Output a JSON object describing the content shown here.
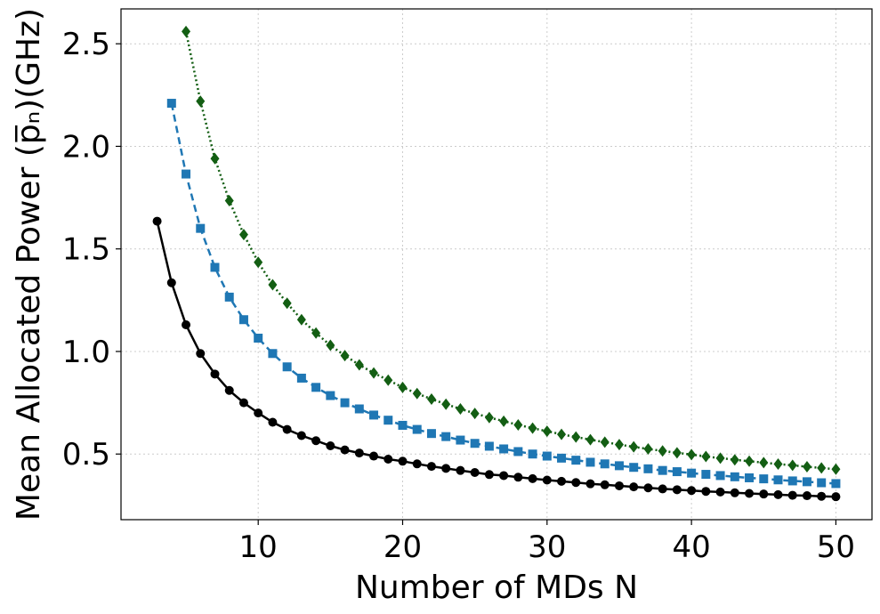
{
  "chart_data": {
    "type": "line",
    "xlabel": "Number of MDs N",
    "ylabel": "Mean Allocated Power (p̅ₙ)(GHz)",
    "xlim": [
      0.5,
      52.5
    ],
    "ylim": [
      0.18,
      2.67
    ],
    "xticks": [
      10,
      20,
      30,
      40,
      50
    ],
    "yticks": [
      0.5,
      1.0,
      1.5,
      2.0,
      2.5
    ],
    "xtick_labels": [
      "10",
      "20",
      "30",
      "40",
      "50"
    ],
    "ytick_labels": [
      "0.5",
      "1.0",
      "1.5",
      "2.0",
      "2.5"
    ],
    "grid": true,
    "legend": "none",
    "series": [
      {
        "color": "#000000",
        "marker": "circle",
        "linestyle": "solid",
        "x": [
          3,
          4,
          5,
          6,
          7,
          8,
          9,
          10,
          11,
          12,
          13,
          14,
          15,
          16,
          17,
          18,
          19,
          20,
          21,
          22,
          23,
          24,
          25,
          26,
          27,
          28,
          29,
          30,
          31,
          32,
          33,
          34,
          35,
          36,
          37,
          38,
          39,
          40,
          41,
          42,
          43,
          44,
          45,
          46,
          47,
          48,
          49,
          50
        ],
        "y": [
          1.635,
          1.335,
          1.13,
          0.99,
          0.89,
          0.81,
          0.75,
          0.7,
          0.655,
          0.62,
          0.59,
          0.565,
          0.54,
          0.52,
          0.505,
          0.49,
          0.475,
          0.465,
          0.452,
          0.44,
          0.43,
          0.42,
          0.41,
          0.4,
          0.395,
          0.387,
          0.38,
          0.373,
          0.367,
          0.361,
          0.355,
          0.35,
          0.345,
          0.34,
          0.335,
          0.33,
          0.326,
          0.322,
          0.318,
          0.315,
          0.311,
          0.308,
          0.305,
          0.302,
          0.299,
          0.297,
          0.294,
          0.292
        ]
      },
      {
        "color": "#1f77b4",
        "marker": "square",
        "linestyle": "dashed",
        "x": [
          4,
          5,
          6,
          7,
          8,
          9,
          10,
          11,
          12,
          13,
          14,
          15,
          16,
          17,
          18,
          19,
          20,
          21,
          22,
          23,
          24,
          25,
          26,
          27,
          28,
          29,
          30,
          31,
          32,
          33,
          34,
          35,
          36,
          37,
          38,
          39,
          40,
          41,
          42,
          43,
          44,
          45,
          46,
          47,
          48,
          49,
          50
        ],
        "y": [
          2.21,
          1.865,
          1.6,
          1.41,
          1.265,
          1.155,
          1.065,
          0.99,
          0.925,
          0.87,
          0.825,
          0.785,
          0.75,
          0.72,
          0.69,
          0.665,
          0.64,
          0.62,
          0.6,
          0.585,
          0.568,
          0.552,
          0.538,
          0.525,
          0.512,
          0.5,
          0.49,
          0.48,
          0.47,
          0.46,
          0.452,
          0.443,
          0.435,
          0.428,
          0.42,
          0.414,
          0.407,
          0.401,
          0.395,
          0.389,
          0.384,
          0.379,
          0.374,
          0.369,
          0.365,
          0.36,
          0.356
        ]
      },
      {
        "color": "#135e13",
        "marker": "diamond",
        "linestyle": "dotted",
        "x": [
          5,
          6,
          7,
          8,
          9,
          10,
          11,
          12,
          13,
          14,
          15,
          16,
          17,
          18,
          19,
          20,
          21,
          22,
          23,
          24,
          25,
          26,
          27,
          28,
          29,
          30,
          31,
          32,
          33,
          34,
          35,
          36,
          37,
          38,
          39,
          40,
          41,
          42,
          43,
          44,
          45,
          46,
          47,
          48,
          49,
          50
        ],
        "y": [
          2.56,
          2.22,
          1.94,
          1.735,
          1.57,
          1.435,
          1.325,
          1.235,
          1.155,
          1.09,
          1.03,
          0.98,
          0.935,
          0.895,
          0.86,
          0.825,
          0.795,
          0.768,
          0.743,
          0.72,
          0.698,
          0.678,
          0.66,
          0.642,
          0.626,
          0.611,
          0.596,
          0.583,
          0.57,
          0.558,
          0.546,
          0.535,
          0.525,
          0.515,
          0.506,
          0.497,
          0.488,
          0.48,
          0.472,
          0.465,
          0.458,
          0.451,
          0.445,
          0.438,
          0.432,
          0.426
        ]
      }
    ]
  }
}
